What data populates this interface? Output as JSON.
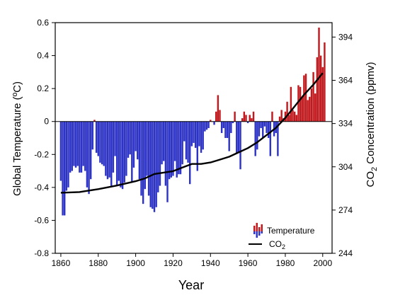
{
  "chart_data": {
    "type": "bar",
    "xlabel": "Year",
    "ylabel_left": "Global Temperature (ºC)",
    "ylabel_right": {
      "prefix": "CO",
      "sub": "2",
      "suffix": " Concentration (ppmv)"
    },
    "xlim": [
      1857,
      2005
    ],
    "ylim_left": [
      -0.8,
      0.6
    ],
    "ylim_right": [
      244,
      404
    ],
    "x_ticks": [
      "1860",
      "1880",
      "1900",
      "1920",
      "1940",
      "1960",
      "1980",
      "2000"
    ],
    "y_left_ticks": [
      "0.6",
      "0.4",
      "0.2",
      "0",
      "-0.2",
      "-0.4",
      "-0.6",
      "-0.8"
    ],
    "y_right_ticks": [
      "394",
      "364",
      "334",
      "304",
      "274",
      "244"
    ],
    "grid": false,
    "legend_position": "bottom-right",
    "legend": [
      {
        "label": "Temperature",
        "kind": "bars"
      },
      {
        "label": {
          "prefix": "CO",
          "sub": "2"
        },
        "kind": "line"
      }
    ],
    "colors": {
      "positive": "#c0191e",
      "negative": "#2d33c4",
      "co2_line": "#000000"
    },
    "series": [
      {
        "name": "Temperature",
        "kind": "bar",
        "x": [
          1860,
          1861,
          1862,
          1863,
          1864,
          1865,
          1866,
          1867,
          1868,
          1869,
          1870,
          1871,
          1872,
          1873,
          1874,
          1875,
          1876,
          1877,
          1878,
          1879,
          1880,
          1881,
          1882,
          1883,
          1884,
          1885,
          1886,
          1887,
          1888,
          1889,
          1890,
          1891,
          1892,
          1893,
          1894,
          1895,
          1896,
          1897,
          1898,
          1899,
          1900,
          1901,
          1902,
          1903,
          1904,
          1905,
          1906,
          1907,
          1908,
          1909,
          1910,
          1911,
          1912,
          1913,
          1914,
          1915,
          1916,
          1917,
          1918,
          1919,
          1920,
          1921,
          1922,
          1923,
          1924,
          1925,
          1926,
          1927,
          1928,
          1929,
          1930,
          1931,
          1932,
          1933,
          1934,
          1935,
          1936,
          1937,
          1938,
          1939,
          1940,
          1941,
          1942,
          1943,
          1944,
          1945,
          1946,
          1947,
          1948,
          1949,
          1950,
          1951,
          1952,
          1953,
          1954,
          1955,
          1956,
          1957,
          1958,
          1959,
          1960,
          1961,
          1962,
          1963,
          1964,
          1965,
          1966,
          1967,
          1968,
          1969,
          1970,
          1971,
          1972,
          1973,
          1974,
          1975,
          1976,
          1977,
          1978,
          1979,
          1980,
          1981,
          1982,
          1983,
          1984,
          1985,
          1986,
          1987,
          1988,
          1989,
          1990,
          1991,
          1992,
          1993,
          1994,
          1995,
          1996,
          1997,
          1998,
          1999,
          2000,
          2001
        ],
        "values": [
          -0.36,
          -0.57,
          -0.57,
          -0.42,
          -0.4,
          -0.31,
          -0.3,
          -0.27,
          -0.28,
          -0.27,
          -0.31,
          -0.31,
          -0.27,
          -0.3,
          -0.4,
          -0.44,
          -0.35,
          -0.17,
          0.01,
          -0.19,
          -0.21,
          -0.25,
          -0.26,
          -0.27,
          -0.33,
          -0.35,
          -0.34,
          -0.39,
          -0.31,
          -0.21,
          -0.39,
          -0.36,
          -0.4,
          -0.41,
          -0.37,
          -0.33,
          -0.22,
          -0.2,
          -0.37,
          -0.28,
          -0.18,
          -0.23,
          -0.35,
          -0.45,
          -0.5,
          -0.41,
          -0.33,
          -0.45,
          -0.52,
          -0.53,
          -0.55,
          -0.52,
          -0.43,
          -0.39,
          -0.26,
          -0.24,
          -0.39,
          -0.49,
          -0.35,
          -0.34,
          -0.33,
          -0.24,
          -0.34,
          -0.32,
          -0.32,
          -0.26,
          -0.12,
          -0.23,
          -0.25,
          -0.38,
          -0.15,
          -0.13,
          -0.16,
          -0.3,
          -0.15,
          -0.19,
          -0.17,
          -0.06,
          -0.05,
          -0.04,
          0.01,
          0.0,
          -0.02,
          0.06,
          0.16,
          0.07,
          -0.07,
          -0.04,
          -0.1,
          -0.1,
          -0.18,
          -0.07,
          -0.01,
          0.06,
          -0.19,
          -0.19,
          -0.29,
          0.02,
          0.06,
          0.04,
          -0.01,
          0.04,
          0.02,
          0.06,
          -0.21,
          -0.17,
          -0.09,
          -0.04,
          -0.1,
          -0.03,
          -0.07,
          -0.1,
          -0.21,
          0.06,
          -0.09,
          -0.07,
          -0.21,
          0.03,
          0.07,
          0.02,
          0.06,
          0.12,
          0.04,
          0.21,
          0.07,
          0.06,
          0.04,
          0.22,
          0.21,
          0.15,
          0.28,
          0.29,
          0.13,
          0.15,
          0.2,
          0.3,
          0.17,
          0.39,
          0.57,
          0.4,
          0.33,
          0.48
        ]
      },
      {
        "name": "CO2",
        "kind": "line",
        "x": [
          1860,
          1870,
          1880,
          1890,
          1900,
          1905,
          1910,
          1915,
          1920,
          1925,
          1930,
          1935,
          1940,
          1945,
          1950,
          1955,
          1960,
          1965,
          1970,
          1975,
          1980,
          1985,
          1990,
          1995,
          2000
        ],
        "values": [
          286,
          286.5,
          288.5,
          291,
          294,
          296,
          299,
          300,
          301,
          303.5,
          306,
          306,
          307,
          309,
          311,
          314,
          317,
          321,
          326,
          331,
          338,
          346,
          354,
          361,
          369
        ]
      }
    ]
  }
}
